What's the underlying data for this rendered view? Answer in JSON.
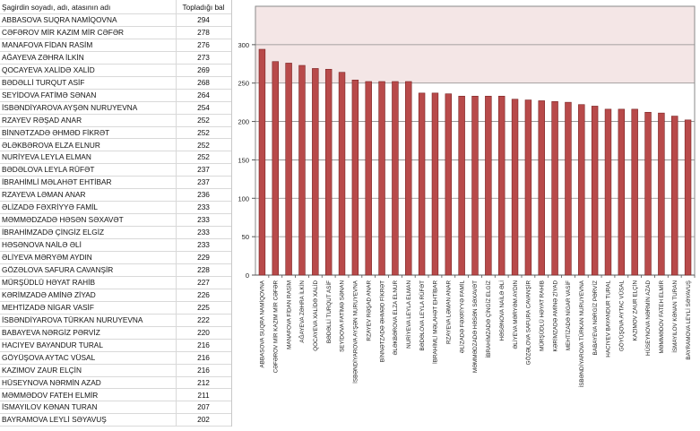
{
  "table": {
    "header_name": "Şagirdin soyadı, adı, atasının adı",
    "header_score": "Topladığı bal",
    "rows": [
      {
        "name": "ABBASOVA SUQRA NAMİQOVNA",
        "score": "294"
      },
      {
        "name": "CƏFƏROV MİR KAZIM MİR CƏFƏR",
        "score": "278"
      },
      {
        "name": "MANAFOVA FİDAN RASİM",
        "score": "276"
      },
      {
        "name": "AĞAYEVA ZƏHRA İLKİN",
        "score": "273"
      },
      {
        "name": "QOCAYEVA XALİDƏ XALİD",
        "score": "269"
      },
      {
        "name": "BƏDƏLLİ TURQUT ASİF",
        "score": "268"
      },
      {
        "name": "SEYİDOVA FATİMƏ SƏNAN",
        "score": "264"
      },
      {
        "name": "İSBƏNDİYAROVA AYŞƏN NURUYEVNA",
        "score": "254"
      },
      {
        "name": "RZAYEV RƏŞAD ANAR",
        "score": "252"
      },
      {
        "name": "BİNNƏTZADƏ ƏHMƏD FİKRƏT",
        "score": "252"
      },
      {
        "name": "ƏLƏKBƏROVA ELZA ELNUR",
        "score": "252"
      },
      {
        "name": "NURİYEVA LEYLA ELMAN",
        "score": "252"
      },
      {
        "name": "BƏDƏLOVA LEYLA RÜFƏT",
        "score": "237"
      },
      {
        "name": "İBRAHİMLİ MƏLAHƏT EHTİBAR",
        "score": "237"
      },
      {
        "name": "RZAYEVA LƏMAN ANAR",
        "score": "236"
      },
      {
        "name": "ƏLİZADƏ FƏXRİYYƏ FAMİL",
        "score": "233"
      },
      {
        "name": "MƏMMƏDZADƏ HƏSƏN SƏXAVƏT",
        "score": "233"
      },
      {
        "name": "İBRAHİMZADƏ ÇİNGİZ ELGİZ",
        "score": "233"
      },
      {
        "name": "HƏSƏNOVA NAİLƏ ƏLİ",
        "score": "233"
      },
      {
        "name": "ƏLİYEVA MƏRYƏM AYDIN",
        "score": "229"
      },
      {
        "name": "GÖZƏLOVA SAFURA CAVANŞİR",
        "score": "228"
      },
      {
        "name": "MÜRŞÜDLÜ HƏYAT RAHİB",
        "score": "227"
      },
      {
        "name": "KƏRİMZADƏ AMİNƏ ZİYAD",
        "score": "226"
      },
      {
        "name": "MEHTİZADƏ NİGAR VASİF",
        "score": "225"
      },
      {
        "name": "İSBƏNDİYAROVA TÜRKAN NURUYEVNA",
        "score": "222"
      },
      {
        "name": "BABAYEVA NƏRGİZ PƏRVİZ",
        "score": "220"
      },
      {
        "name": "HACIYEV BAYANDUR TURAL",
        "score": "216"
      },
      {
        "name": "GÖYÜŞOVA AYTAC VÜSAL",
        "score": "216"
      },
      {
        "name": "KAZIMOV ZAUR ELÇİN",
        "score": "216"
      },
      {
        "name": "HÜSEYNOVA NƏRMİN AZAD",
        "score": "212"
      },
      {
        "name": "MƏMMƏDOV FATEH ELMİR",
        "score": "211"
      },
      {
        "name": "İSMAYILOV KƏNAN TURAN",
        "score": "207"
      },
      {
        "name": "BAYRAMOVA LEYLİ SƏYAVUŞ",
        "score": "202"
      }
    ]
  },
  "chart_data": {
    "type": "bar",
    "categories": [
      "ABBASOVA SUQRA NAMİQOVNA",
      "CƏFƏROV MİR KAZIM MİR CƏFƏR",
      "MANAFOVA FİDAN RASİM",
      "AĞAYEVA ZƏHRA İLKİN",
      "QOCAYEVA XALİDƏ XALİD",
      "BƏDƏLLİ TURQUT ASİF",
      "SEYİDOVA FATİMƏ SƏNAN",
      "İSBƏNDİYAROVA AYŞƏN NURUYEVNA",
      "RZAYEV RƏŞAD ANAR",
      "BİNNƏTZADƏ ƏHMƏD FİKRƏT",
      "ƏLƏKBƏROVA ELZA ELNUR",
      "NURİYEVA LEYLA ELMAN",
      "BƏDƏLOVA LEYLA RÜFƏT",
      "İBRAHİMLİ MƏLAHƏT EHTİBAR",
      "RZAYEVA LƏMAN ANAR",
      "ƏLİZADƏ FƏXRİYYƏ FAMİL",
      "MƏMMƏDZADƏ HƏSƏN SƏXAVƏT",
      "İBRAHİMZADƏ ÇİNGİZ ELGİZ",
      "HƏSƏNOVA NAİLƏ ƏLİ",
      "ƏLİYEVA MƏRYƏM AYDIN",
      "GÖZƏLOVA SAFURA CAVANŞİR",
      "MÜRŞÜDLÜ HƏYAT RAHİB",
      "KƏRİMZADƏ AMİNƏ ZİYAD",
      "MEHTİZADƏ NİGAR VASİF",
      "İSBƏNDİYAROVA TÜRKAN NURUYEVNA",
      "BABAYEVA NƏRGİZ PƏRVİZ",
      "HACIYEV BAYANDUR TURAL",
      "GÖYÜŞOVA AYTAC VÜSAL",
      "KAZIMOV ZAUR ELÇİN",
      "HÜSEYNOVA NƏRMİN AZAD",
      "MƏMMƏDOV FATEH ELMİR",
      "İSMAYILOV KƏNAN TURAN",
      "BAYRAMOVA LEYLİ SƏYAVUŞ"
    ],
    "values": [
      294,
      278,
      276,
      273,
      269,
      268,
      264,
      254,
      252,
      252,
      252,
      252,
      237,
      237,
      236,
      233,
      233,
      233,
      233,
      229,
      228,
      227,
      226,
      225,
      222,
      220,
      216,
      216,
      216,
      212,
      211,
      207,
      202
    ],
    "ylim": [
      0,
      350
    ],
    "yticks": [
      0,
      50,
      100,
      150,
      200,
      250,
      300
    ],
    "grid": true,
    "title": "",
    "xlabel": "",
    "ylabel": "",
    "colors": {
      "bar": "#b84a4a",
      "bar_edge": "#7a2323",
      "plot_bg": "#f4e6e6",
      "grid": "#8a8a8a"
    }
  }
}
